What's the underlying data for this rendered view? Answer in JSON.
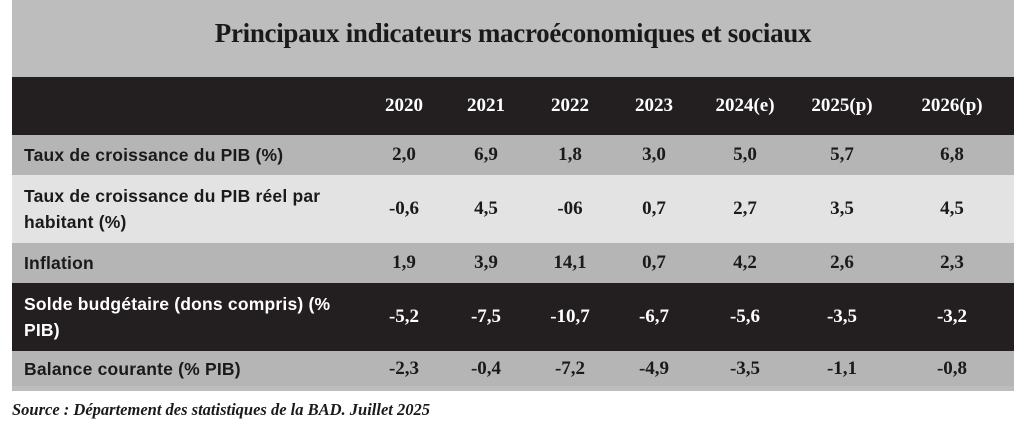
{
  "title": "Principaux indicateurs macroéconomiques et sociaux",
  "columns": [
    "2020",
    "2021",
    "2022",
    "2023",
    "2024(e)",
    "2025(p)",
    "2026(p)"
  ],
  "rows": [
    {
      "label": "Taux de croissance du PIB (%)",
      "values": [
        "2,0",
        "6,9",
        "1,8",
        "3,0",
        "5,0",
        "5,7",
        "6,8"
      ]
    },
    {
      "label": "Taux de croissance du PIB réel par habitant (%)",
      "values": [
        "-0,6",
        "4,5",
        "-06",
        "0,7",
        "2,7",
        "3,5",
        "4,5"
      ]
    },
    {
      "label": "Inflation",
      "values": [
        "1,9",
        "3,9",
        "14,1",
        "0,7",
        "4,2",
        "2,6",
        "2,3"
      ]
    },
    {
      "label": "Solde budgétaire (dons compris) (% PIB)",
      "values": [
        "-5,2",
        "-7,5",
        "-10,7",
        "-6,7",
        "-5,6",
        "-3,5",
        "-3,2"
      ]
    },
    {
      "label": "Balance courante (% PIB)",
      "values": [
        "-2,3",
        "-0,4",
        "-7,2",
        "-4,9",
        "-3,5",
        "-1,1",
        "-0,8"
      ]
    }
  ],
  "source": "Source : Département des statistiques de la BAD. Juillet 2025",
  "colors": {
    "frame": "#bdbdbd",
    "header": "#231f20",
    "row_light": "#e3e3e3",
    "row_medium": "#b5b5b5",
    "row_dark": "#231f20"
  }
}
